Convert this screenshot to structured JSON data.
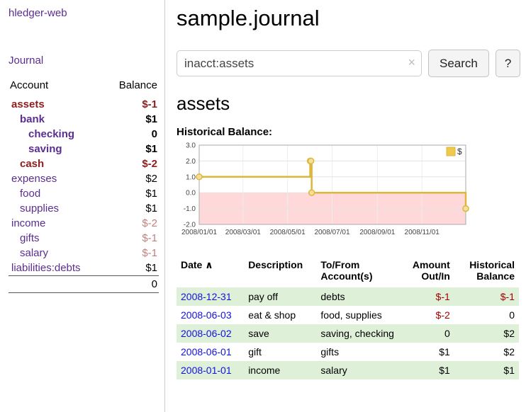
{
  "app": {
    "title": "hledger-web"
  },
  "sidebar": {
    "journal_label": "Journal",
    "headers": {
      "account": "Account",
      "balance": "Balance"
    },
    "accounts": [
      {
        "name": "assets",
        "balance": "$-1",
        "depth": 0,
        "bold": true,
        "name_style": "selected",
        "balance_style": "neg-strong"
      },
      {
        "name": "bank",
        "balance": "$1",
        "depth": 1,
        "bold": true,
        "name_style": "link",
        "balance_style": "pos"
      },
      {
        "name": "checking",
        "balance": "0",
        "depth": 2,
        "bold": true,
        "name_style": "link",
        "balance_style": "pos"
      },
      {
        "name": "saving",
        "balance": "$1",
        "depth": 2,
        "bold": true,
        "name_style": "link",
        "balance_style": "pos"
      },
      {
        "name": "cash",
        "balance": "$-2",
        "depth": 1,
        "bold": true,
        "name_style": "selected",
        "balance_style": "neg-strong"
      },
      {
        "name": "expenses",
        "balance": "$2",
        "depth": 0,
        "bold": false,
        "name_style": "link",
        "balance_style": "pos"
      },
      {
        "name": "food",
        "balance": "$1",
        "depth": 1,
        "bold": false,
        "name_style": "link",
        "balance_style": "pos"
      },
      {
        "name": "supplies",
        "balance": "$1",
        "depth": 1,
        "bold": false,
        "name_style": "link",
        "balance_style": "pos"
      },
      {
        "name": "income",
        "balance": "$-2",
        "depth": 0,
        "bold": false,
        "name_style": "link",
        "balance_style": "neg-soft"
      },
      {
        "name": "gifts",
        "balance": "$-1",
        "depth": 1,
        "bold": false,
        "name_style": "link",
        "balance_style": "neg-soft"
      },
      {
        "name": "salary",
        "balance": "$-1",
        "depth": 1,
        "bold": false,
        "name_style": "link",
        "balance_style": "neg-soft"
      },
      {
        "name": "liabilities:debts",
        "balance": "$1",
        "depth": 0,
        "bold": false,
        "name_style": "link",
        "balance_style": "pos"
      }
    ],
    "total": "0"
  },
  "main": {
    "title": "sample.journal",
    "search": {
      "value": "inacct:assets",
      "clear_icon": "×",
      "button_label": "Search",
      "help_label": "?"
    },
    "account_heading": "assets",
    "register": {
      "headers": {
        "date": "Date",
        "sort_icon": "∧",
        "description": "Description",
        "accounts": "To/From Account(s)",
        "amount": "Amount Out/In",
        "balance": "Historical Balance"
      },
      "rows": [
        {
          "date": "2008-12-31",
          "description": "pay off",
          "accounts": "debts",
          "amount": "$-1",
          "amount_neg": true,
          "balance": "$-1",
          "balance_neg": true,
          "highlight": true
        },
        {
          "date": "2008-06-03",
          "description": "eat & shop",
          "accounts": "food, supplies",
          "amount": "$-2",
          "amount_neg": true,
          "balance": "0",
          "balance_neg": false,
          "highlight": false
        },
        {
          "date": "2008-06-02",
          "description": "save",
          "accounts": "saving, checking",
          "amount": "0",
          "amount_neg": false,
          "balance": "$2",
          "balance_neg": false,
          "highlight": true
        },
        {
          "date": "2008-06-01",
          "description": "gift",
          "accounts": "gifts",
          "amount": "$1",
          "amount_neg": false,
          "balance": "$2",
          "balance_neg": false,
          "highlight": false
        },
        {
          "date": "2008-01-01",
          "description": "income",
          "accounts": "salary",
          "amount": "$1",
          "amount_neg": false,
          "balance": "$1",
          "balance_neg": false,
          "highlight": true
        }
      ]
    }
  },
  "chart_data": {
    "type": "line",
    "step": true,
    "title": "Historical Balance:",
    "xlabel": "",
    "ylabel": "",
    "xlim": [
      "2008-01-01",
      "2008-12-31"
    ],
    "ylim": [
      -2,
      3
    ],
    "y_ticks": [
      3,
      2,
      1,
      0,
      -1,
      -2
    ],
    "x_ticks": [
      {
        "pos": "2008-01-01",
        "label": "2008/01/01"
      },
      {
        "pos": "2008-03-01",
        "label": "2008/03/01"
      },
      {
        "pos": "2008-05-01",
        "label": "2008/05/01"
      },
      {
        "pos": "2008-07-01",
        "label": "2008/07/01"
      },
      {
        "pos": "2008-09-01",
        "label": "2008/09/01"
      },
      {
        "pos": "2008-11-01",
        "label": "2008/11/01"
      }
    ],
    "series": [
      {
        "name": "$",
        "points": [
          [
            "2008-01-01",
            1
          ],
          [
            "2008-06-01",
            2
          ],
          [
            "2008-06-02",
            2
          ],
          [
            "2008-06-03",
            0
          ],
          [
            "2008-12-31",
            -1
          ]
        ]
      }
    ],
    "legend": {
      "label": "$",
      "position": "top-right"
    },
    "colors": {
      "line": "#ddb63c",
      "marker_fill": "#f6df9a",
      "legend_fill": "#eec94b",
      "negative_region": "#ffd9d9",
      "grid": "#e3e3e3",
      "grid_vertical": "#ededed",
      "border": "#a9a9a9",
      "tick_text": "#444444"
    }
  }
}
